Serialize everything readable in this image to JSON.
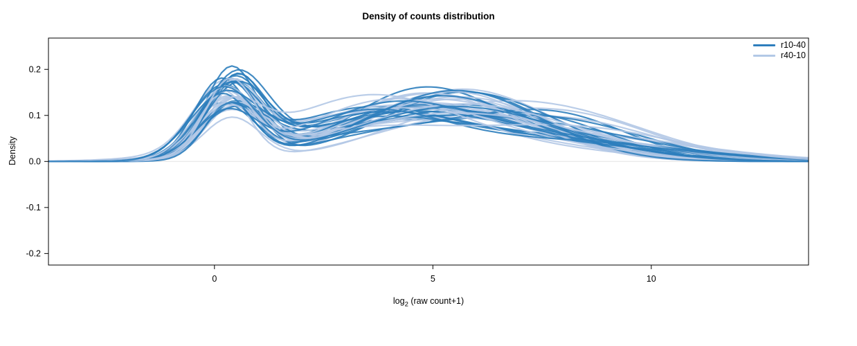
{
  "chart_data": {
    "type": "line",
    "title": "Density of counts distribution",
    "xlabel": "log2 (raw count+1)",
    "xlabel_parts": {
      "base": "log",
      "sub": "2",
      "rest": " (raw count+1)"
    },
    "ylabel": "Density",
    "xlim": [
      -3.8,
      13.6
    ],
    "ylim": [
      -0.225,
      0.268
    ],
    "xticks": [
      0,
      5,
      10
    ],
    "yticks": [
      -0.2,
      -0.1,
      0,
      0.1,
      0.2
    ],
    "grid": false,
    "zero_line_color": "#e4e4e4",
    "box_color": "#000000",
    "legend": {
      "position": "top-right"
    },
    "series": [
      {
        "name": "r10-40",
        "color": "#2e7ebd",
        "n_curves": 22,
        "peak": {
          "weight": [
            0.17,
            0.31
          ],
          "mean": [
            0.15,
            0.55
          ],
          "sd": [
            0.55,
            0.8
          ]
        },
        "bump1": {
          "mean": [
            3.3,
            5.3
          ],
          "sd": [
            1.6,
            2.4
          ]
        },
        "bump2": {
          "mean": [
            5.8,
            8.2
          ],
          "sd": [
            1.6,
            2.8
          ]
        },
        "peak_height_range": [
          0.09,
          0.235
        ],
        "mid_height_range": [
          0.08,
          0.15
        ]
      },
      {
        "name": "r40-10",
        "color": "#b2c8e6",
        "n_curves": 22,
        "peak": {
          "weight": [
            0.15,
            0.26
          ],
          "mean": [
            0.15,
            0.55
          ],
          "sd": [
            0.55,
            0.8
          ]
        },
        "bump1": {
          "mean": [
            3.3,
            5.5
          ],
          "sd": [
            1.7,
            2.5
          ]
        },
        "bump2": {
          "mean": [
            5.8,
            8.4
          ],
          "sd": [
            1.7,
            2.9
          ]
        },
        "peak_height_range": [
          0.1,
          0.19
        ],
        "mid_height_range": [
          0.08,
          0.15
        ]
      }
    ]
  }
}
